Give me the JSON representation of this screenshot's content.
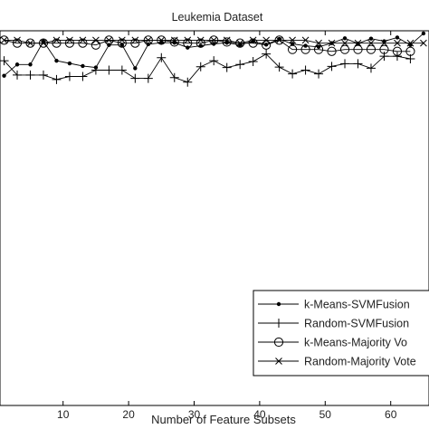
{
  "chart_data": {
    "type": "line",
    "title": "Leukemia Dataset",
    "xlabel": "Number of Feature Subsets",
    "ylabel": "",
    "xlim": [
      0,
      65
    ],
    "ylim": [
      0,
      1
    ],
    "xticks": [
      10,
      20,
      30,
      40,
      50,
      60
    ],
    "grid": false,
    "legend_position": "bottom-right",
    "series": [
      {
        "name": "k-Means-SVMFusion",
        "marker": "dot",
        "x": [
          1,
          3,
          5,
          7,
          9,
          11,
          13,
          15,
          17,
          19,
          21,
          23,
          25,
          27,
          29,
          31,
          33,
          35,
          37,
          39,
          41,
          43,
          45,
          47,
          49,
          51,
          53,
          55,
          57,
          59,
          61,
          63,
          65
        ],
        "y": [
          0.88,
          0.91,
          0.91,
          0.972,
          0.92,
          0.913,
          0.906,
          0.902,
          0.962,
          0.962,
          0.9,
          0.964,
          0.968,
          0.968,
          0.955,
          0.96,
          0.965,
          0.968,
          0.962,
          0.972,
          0.963,
          0.978,
          0.965,
          0.96,
          0.957,
          0.967,
          0.98,
          0.966,
          0.979,
          0.972,
          0.982,
          0.962,
          0.993
        ]
      },
      {
        "name": "Random-SVMFusion",
        "marker": "plus",
        "x": [
          1,
          3,
          5,
          7,
          9,
          11,
          13,
          15,
          17,
          19,
          21,
          23,
          25,
          27,
          29,
          31,
          33,
          35,
          37,
          39,
          41,
          43,
          45,
          47,
          49,
          51,
          53,
          55,
          57,
          59,
          61,
          63
        ],
        "y": [
          0.92,
          0.882,
          0.882,
          0.882,
          0.87,
          0.878,
          0.878,
          0.895,
          0.895,
          0.895,
          0.873,
          0.873,
          0.928,
          0.875,
          0.863,
          0.904,
          0.92,
          0.902,
          0.91,
          0.918,
          0.938,
          0.903,
          0.885,
          0.895,
          0.885,
          0.905,
          0.912,
          0.912,
          0.9,
          0.932,
          0.932,
          0.925
        ]
      },
      {
        "name": "k-Means-Majority Vo",
        "marker": "circle",
        "x": [
          1,
          3,
          5,
          7,
          9,
          11,
          13,
          15,
          17,
          19,
          21,
          23,
          25,
          27,
          29,
          31,
          33,
          35,
          37,
          39,
          41,
          43,
          45,
          47,
          49,
          51,
          53,
          55,
          57,
          59,
          61,
          63
        ],
        "y": [
          0.975,
          0.967,
          0.967,
          0.967,
          0.967,
          0.967,
          0.967,
          0.962,
          0.975,
          0.967,
          0.967,
          0.975,
          0.975,
          0.97,
          0.967,
          0.967,
          0.975,
          0.97,
          0.967,
          0.967,
          0.962,
          0.975,
          0.95,
          0.95,
          0.95,
          0.945,
          0.95,
          0.95,
          0.95,
          0.95,
          0.945,
          0.945
        ]
      },
      {
        "name": "Random-Majority Vote",
        "marker": "x",
        "x": [
          1,
          3,
          5,
          7,
          9,
          11,
          13,
          15,
          17,
          19,
          21,
          23,
          25,
          27,
          29,
          31,
          33,
          35,
          37,
          39,
          41,
          43,
          45,
          47,
          49,
          51,
          53,
          55,
          57,
          59,
          61,
          63,
          65
        ],
        "y": [
          0.975,
          0.975,
          0.967,
          0.967,
          0.975,
          0.975,
          0.975,
          0.975,
          0.975,
          0.975,
          0.975,
          0.975,
          0.975,
          0.975,
          0.975,
          0.975,
          0.975,
          0.975,
          0.967,
          0.975,
          0.975,
          0.975,
          0.975,
          0.975,
          0.967,
          0.967,
          0.967,
          0.967,
          0.967,
          0.967,
          0.967,
          0.967,
          0.967
        ]
      }
    ]
  }
}
